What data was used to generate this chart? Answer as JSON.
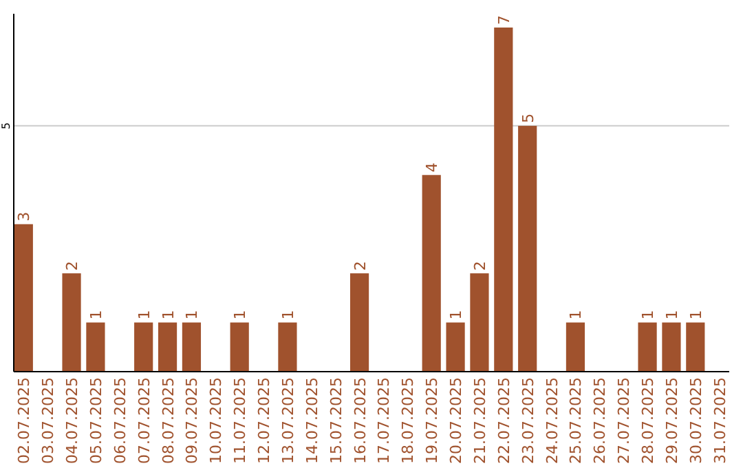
{
  "chart_data": {
    "type": "bar",
    "categories": [
      "02.07.2025",
      "03.07.2025",
      "04.07.2025",
      "05.07.2025",
      "06.07.2025",
      "07.07.2025",
      "08.07.2025",
      "09.07.2025",
      "10.07.2025",
      "11.07.2025",
      "12.07.2025",
      "13.07.2025",
      "14.07.2025",
      "15.07.2025",
      "16.07.2025",
      "17.07.2025",
      "18.07.2025",
      "19.07.2025",
      "20.07.2025",
      "21.07.2025",
      "22.07.2025",
      "23.07.2025",
      "24.07.2025",
      "25.07.2025",
      "26.07.2025",
      "27.07.2025",
      "28.07.2025",
      "29.07.2025",
      "30.07.2025",
      "31.07.2025"
    ],
    "values": [
      3,
      0,
      2,
      1,
      0,
      1,
      1,
      1,
      0,
      1,
      0,
      1,
      0,
      0,
      2,
      0,
      0,
      4,
      1,
      2,
      7,
      5,
      0,
      1,
      0,
      0,
      1,
      1,
      1,
      0
    ],
    "value_labels": [
      "3",
      null,
      "2",
      "1",
      null,
      "1",
      "1",
      "1",
      null,
      "1",
      null,
      "1",
      null,
      null,
      "2",
      null,
      null,
      "4",
      "1",
      "2",
      "7",
      "5",
      null,
      "1",
      null,
      null,
      "1",
      "1",
      "1",
      null
    ],
    "color": "#a0522d",
    "ylim": [
      0,
      7.28
    ],
    "yticks": [
      5
    ],
    "grid": "y"
  }
}
